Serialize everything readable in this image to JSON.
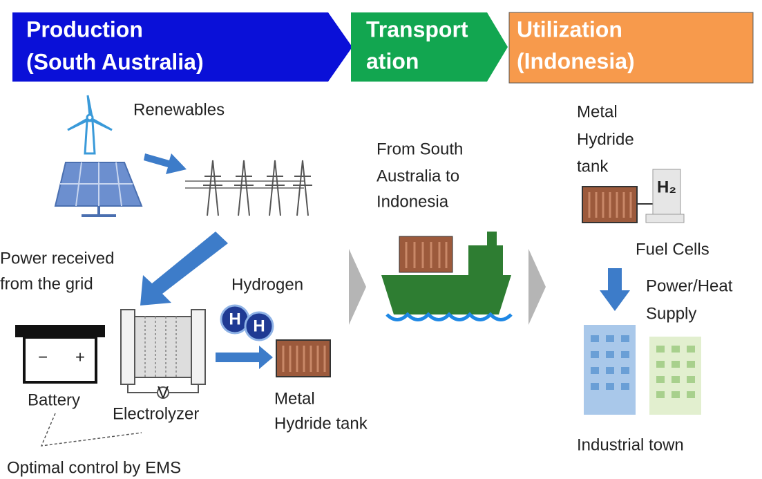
{
  "stages": [
    {
      "lines": [
        "Production",
        "(South Australia)"
      ]
    },
    {
      "lines": [
        "Transport",
        "ation"
      ]
    },
    {
      "lines": [
        "Utilization",
        "(Indonesia)"
      ]
    }
  ],
  "renewables": "Renewables",
  "grid_power": [
    "Power received",
    "from the grid"
  ],
  "hydrogen": "Hydrogen",
  "hydrogen_atom": "H",
  "battery": "Battery",
  "battery_terminals": [
    "−",
    "+"
  ],
  "electrolyzer": "Electrolyzer",
  "voltmeter": "V",
  "production_tank": [
    "Metal",
    "Hydride tank"
  ],
  "route": [
    "From South",
    "Australia to",
    "Indonesia"
  ],
  "utilization_tank": [
    "Metal",
    "Hydride",
    "tank"
  ],
  "h2_symbol": "H₂",
  "fuel_cells": "Fuel Cells",
  "supply": [
    "Power/Heat",
    "Supply"
  ],
  "industrial_town": "Industrial town",
  "ems": "Optimal control by EMS"
}
